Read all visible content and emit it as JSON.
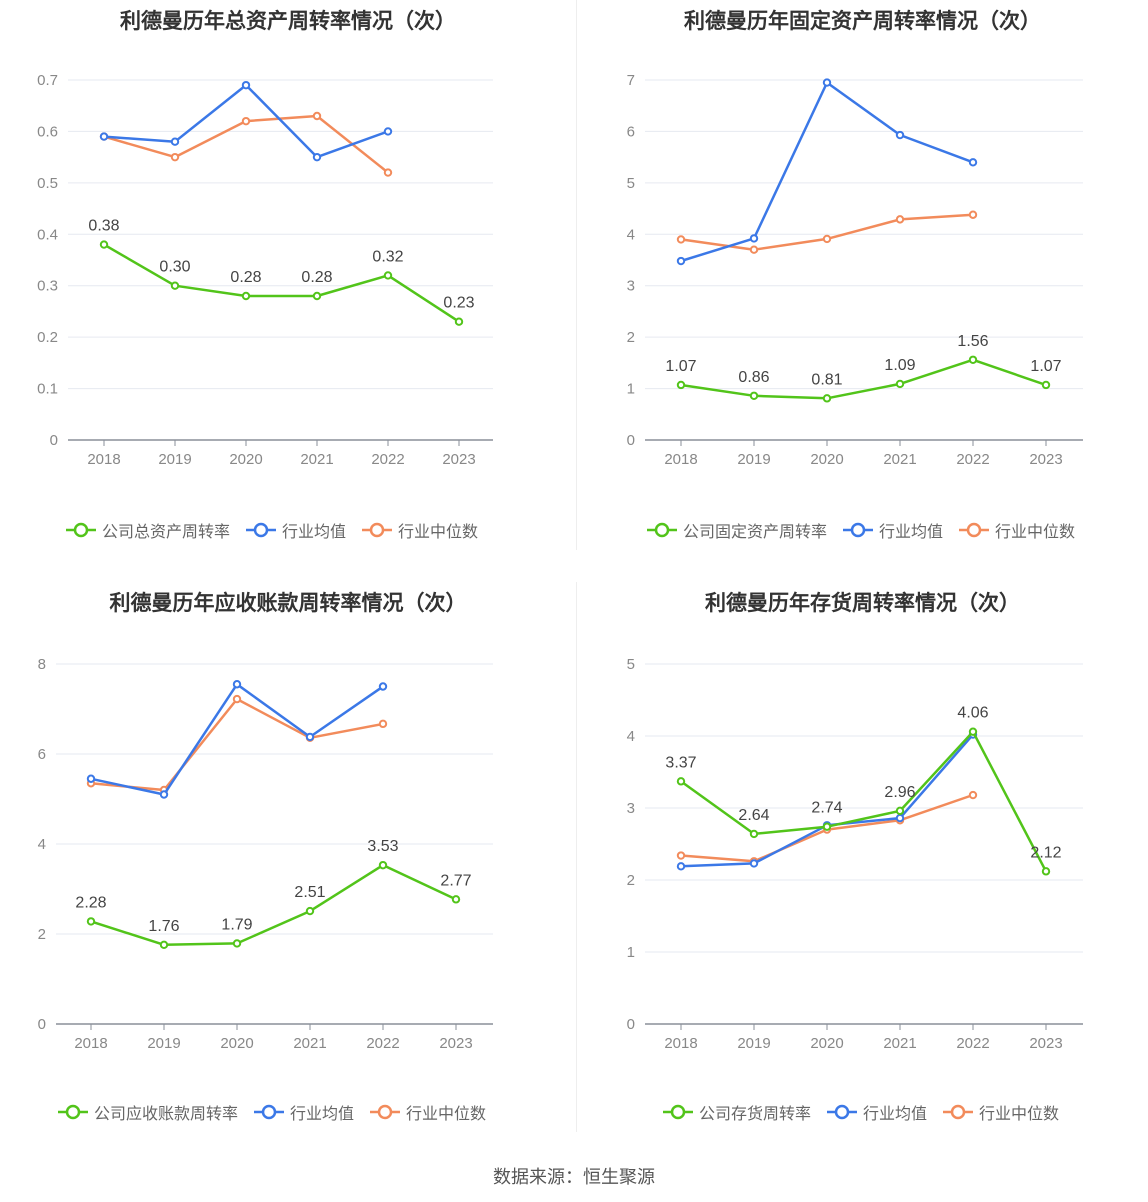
{
  "source": "数据来源：恒生聚源",
  "chart_data": [
    {
      "type": "line",
      "title": "利德曼历年总资产周转率情况（次）",
      "categories": [
        "2018",
        "2019",
        "2020",
        "2021",
        "2022",
        "2023"
      ],
      "ylim": [
        0,
        0.7
      ],
      "yticks": [
        "0",
        "0.1",
        "0.2",
        "0.3",
        "0.4",
        "0.5",
        "0.6",
        "0.7"
      ],
      "ytick_values": [
        0,
        0.1,
        0.2,
        0.3,
        0.4,
        0.5,
        0.6,
        0.7
      ],
      "grid": true,
      "legend_position": "bottom",
      "series": [
        {
          "name": "公司总资产周转率",
          "color": "#52c41a",
          "values": [
            0.38,
            0.3,
            0.28,
            0.28,
            0.32,
            0.23
          ],
          "labels": [
            "0.38",
            "0.30",
            "0.28",
            "0.28",
            "0.32",
            "0.23"
          ]
        },
        {
          "name": "行业均值",
          "color": "#3b78e7",
          "values": [
            0.59,
            0.58,
            0.69,
            0.55,
            0.6,
            null
          ]
        },
        {
          "name": "行业中位数",
          "color": "#f28b5b",
          "values": [
            0.59,
            0.55,
            0.62,
            0.63,
            0.52,
            null
          ]
        }
      ]
    },
    {
      "type": "line",
      "title": "利德曼历年固定资产周转率情况（次）",
      "categories": [
        "2018",
        "2019",
        "2020",
        "2021",
        "2022",
        "2023"
      ],
      "ylim": [
        0,
        7
      ],
      "yticks": [
        "0",
        "1",
        "2",
        "3",
        "4",
        "5",
        "6",
        "7"
      ],
      "ytick_values": [
        0,
        1,
        2,
        3,
        4,
        5,
        6,
        7
      ],
      "grid": true,
      "legend_position": "bottom",
      "series": [
        {
          "name": "公司固定资产周转率",
          "color": "#52c41a",
          "values": [
            1.07,
            0.86,
            0.81,
            1.09,
            1.56,
            1.07
          ],
          "labels": [
            "1.07",
            "0.86",
            "0.81",
            "1.09",
            "1.56",
            "1.07"
          ]
        },
        {
          "name": "行业均值",
          "color": "#3b78e7",
          "values": [
            3.48,
            3.92,
            6.95,
            5.93,
            5.4,
            null
          ]
        },
        {
          "name": "行业中位数",
          "color": "#f28b5b",
          "values": [
            3.9,
            3.7,
            3.91,
            4.29,
            4.38,
            null
          ]
        }
      ]
    },
    {
      "type": "line",
      "title": "利德曼历年应收账款周转率情况（次）",
      "categories": [
        "2018",
        "2019",
        "2020",
        "2021",
        "2022",
        "2023"
      ],
      "ylim": [
        0,
        8
      ],
      "yticks": [
        "0",
        "2",
        "4",
        "6",
        "8"
      ],
      "ytick_values": [
        0,
        2,
        4,
        6,
        8
      ],
      "grid": true,
      "legend_position": "bottom",
      "series": [
        {
          "name": "公司应收账款周转率",
          "color": "#52c41a",
          "values": [
            2.28,
            1.76,
            1.79,
            2.51,
            3.53,
            2.77
          ],
          "labels": [
            "2.28",
            "1.76",
            "1.79",
            "2.51",
            "3.53",
            "2.77"
          ]
        },
        {
          "name": "行业均值",
          "color": "#3b78e7",
          "values": [
            5.45,
            5.1,
            7.55,
            6.38,
            7.5,
            null
          ]
        },
        {
          "name": "行业中位数",
          "color": "#f28b5b",
          "values": [
            5.35,
            5.2,
            7.22,
            6.36,
            6.67,
            null
          ]
        }
      ]
    },
    {
      "type": "line",
      "title": "利德曼历年存货周转率情况（次）",
      "categories": [
        "2018",
        "2019",
        "2020",
        "2021",
        "2022",
        "2023"
      ],
      "ylim": [
        0,
        5
      ],
      "yticks": [
        "0",
        "1",
        "2",
        "3",
        "4",
        "5"
      ],
      "ytick_values": [
        0,
        1,
        2,
        3,
        4,
        5
      ],
      "grid": true,
      "legend_position": "bottom",
      "series": [
        {
          "name": "公司存货周转率",
          "color": "#52c41a",
          "values": [
            3.37,
            2.64,
            2.74,
            2.96,
            4.06,
            2.12
          ],
          "labels": [
            "3.37",
            "2.64",
            "2.74",
            "2.96",
            "4.06",
            "2.12"
          ]
        },
        {
          "name": "行业均值",
          "color": "#3b78e7",
          "values": [
            2.19,
            2.23,
            2.76,
            2.86,
            4.02,
            null
          ]
        },
        {
          "name": "行业中位数",
          "color": "#f28b5b",
          "values": [
            2.34,
            2.26,
            2.7,
            2.83,
            3.18,
            null
          ]
        }
      ]
    }
  ]
}
